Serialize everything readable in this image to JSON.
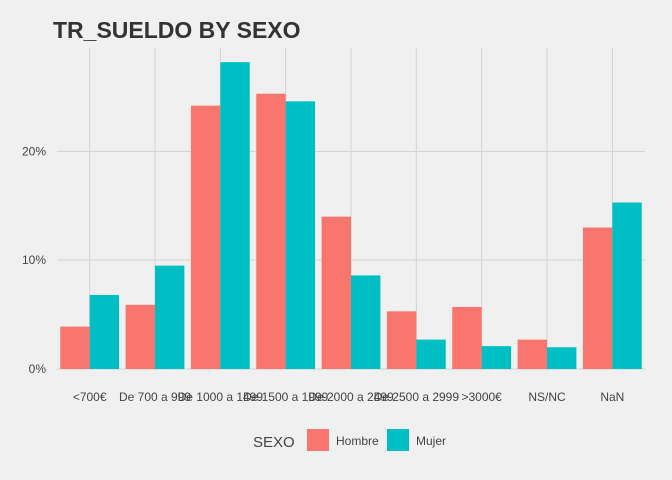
{
  "chart_data": {
    "type": "bar",
    "title": "TR_SUELDO BY SEXO",
    "xlabel": "",
    "ylabel": "",
    "categories": [
      "<700€",
      "De 700 a 999",
      "De 1000 a 1499",
      "De 1500 a 1999",
      "De 2000 a 2499",
      "De 2500 a 2999",
      ">3000€",
      "NS/NC",
      "NaN"
    ],
    "y_ticks": [
      0,
      10,
      20
    ],
    "y_tick_labels": [
      "0%",
      "10%",
      "20%"
    ],
    "ylim": [
      0,
      29.5
    ],
    "grid": true,
    "legend": {
      "title": "SEXO",
      "position": "bottom"
    },
    "series": [
      {
        "name": "Hombre",
        "color": "#F8766D",
        "values": [
          3.9,
          5.9,
          24.2,
          25.3,
          14.0,
          5.3,
          5.7,
          2.7,
          13.0
        ]
      },
      {
        "name": "Mujer",
        "color": "#00BFC4",
        "values": [
          6.8,
          9.5,
          28.2,
          24.6,
          8.6,
          2.7,
          2.1,
          2.0,
          15.3
        ]
      }
    ]
  }
}
